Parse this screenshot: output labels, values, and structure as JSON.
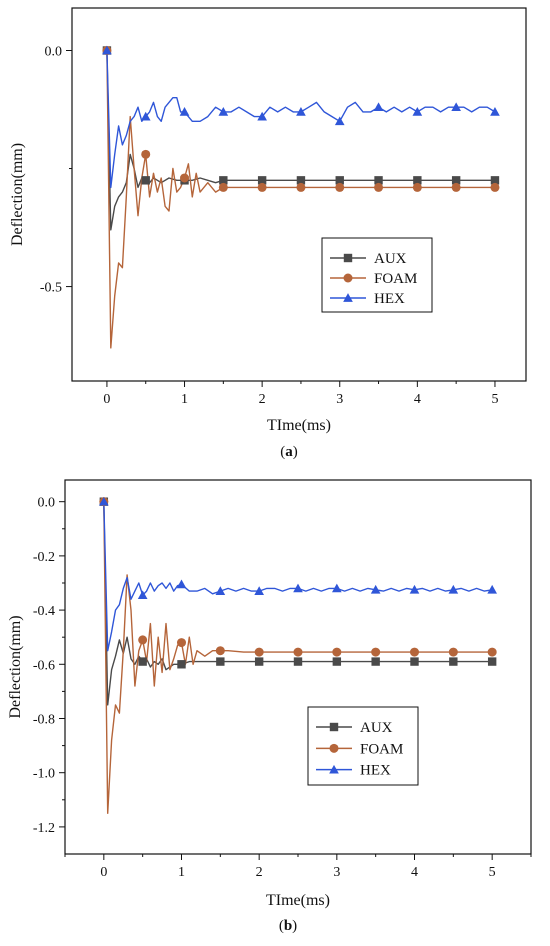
{
  "chart_data": [
    {
      "type": "line",
      "caption_letter": "a",
      "xlabel": "TIme(ms)",
      "ylabel": "Deflection(mm)",
      "xlim": [
        -0.45,
        5.4
      ],
      "ylim": [
        -0.7,
        0.09
      ],
      "xticks": [
        0,
        1,
        2,
        3,
        4,
        5
      ],
      "yticks": [
        0.0,
        -0.5
      ],
      "ytick_labels": [
        "0.0",
        "-0.5"
      ],
      "grid": false,
      "legend_position": "bottom-right",
      "series": [
        {
          "name": "AUX",
          "color": "#4a4a4a",
          "marker": "square",
          "x": [
            0,
            0.05,
            0.1,
            0.15,
            0.2,
            0.25,
            0.3,
            0.35,
            0.4,
            0.45,
            0.5,
            0.55,
            0.6,
            0.65,
            0.7,
            0.8,
            0.9,
            1.0,
            1.1,
            1.2,
            1.3,
            1.4,
            1.5,
            1.6,
            1.7,
            1.8,
            1.9,
            2.0,
            2.5,
            3.0,
            3.5,
            4.0,
            4.5,
            5.0
          ],
          "y": [
            0,
            -0.38,
            -0.33,
            -0.31,
            -0.3,
            -0.28,
            -0.22,
            -0.25,
            -0.29,
            -0.27,
            -0.275,
            -0.28,
            -0.27,
            -0.275,
            -0.28,
            -0.27,
            -0.275,
            -0.275,
            -0.275,
            -0.27,
            -0.275,
            -0.28,
            -0.275,
            -0.275,
            -0.275,
            -0.275,
            -0.275,
            -0.275,
            -0.275,
            -0.275,
            -0.275,
            -0.275,
            -0.275,
            -0.275
          ],
          "marker_x": [
            0,
            0.5,
            1.0,
            1.5,
            2.0,
            2.5,
            3.0,
            3.5,
            4.0,
            4.5,
            5.0
          ]
        },
        {
          "name": "FOAM",
          "color": "#b5653a",
          "marker": "circle",
          "x": [
            0,
            0.05,
            0.1,
            0.15,
            0.2,
            0.25,
            0.3,
            0.35,
            0.4,
            0.45,
            0.5,
            0.55,
            0.6,
            0.65,
            0.7,
            0.75,
            0.8,
            0.85,
            0.9,
            0.95,
            1.0,
            1.05,
            1.1,
            1.15,
            1.2,
            1.3,
            1.4,
            1.5,
            1.6,
            1.8,
            2.0,
            2.2,
            2.5,
            3.0,
            3.5,
            4.0,
            4.5,
            5.0
          ],
          "y": [
            0,
            -0.63,
            -0.52,
            -0.45,
            -0.46,
            -0.31,
            -0.14,
            -0.25,
            -0.35,
            -0.27,
            -0.22,
            -0.31,
            -0.26,
            -0.3,
            -0.27,
            -0.33,
            -0.34,
            -0.25,
            -0.3,
            -0.29,
            -0.27,
            -0.24,
            -0.31,
            -0.26,
            -0.3,
            -0.28,
            -0.3,
            -0.29,
            -0.29,
            -0.29,
            -0.29,
            -0.29,
            -0.29,
            -0.29,
            -0.29,
            -0.29,
            -0.29,
            -0.29
          ],
          "marker_x": [
            0,
            0.5,
            1.0,
            1.5,
            2.0,
            2.5,
            3.0,
            3.5,
            4.0,
            4.5,
            5.0
          ]
        },
        {
          "name": "HEX",
          "color": "#2f56d8",
          "marker": "triangle",
          "x": [
            0,
            0.05,
            0.1,
            0.15,
            0.2,
            0.25,
            0.3,
            0.35,
            0.4,
            0.45,
            0.5,
            0.55,
            0.6,
            0.65,
            0.7,
            0.75,
            0.8,
            0.85,
            0.9,
            0.95,
            1.0,
            1.1,
            1.2,
            1.3,
            1.4,
            1.5,
            1.6,
            1.7,
            1.8,
            1.9,
            2.0,
            2.1,
            2.2,
            2.3,
            2.4,
            2.5,
            2.6,
            2.7,
            2.8,
            2.9,
            3.0,
            3.1,
            3.2,
            3.3,
            3.4,
            3.5,
            3.6,
            3.7,
            3.8,
            3.9,
            4.0,
            4.1,
            4.2,
            4.3,
            4.4,
            4.5,
            4.6,
            4.7,
            4.8,
            4.9,
            5.0
          ],
          "y": [
            0,
            -0.29,
            -0.22,
            -0.16,
            -0.2,
            -0.18,
            -0.15,
            -0.14,
            -0.12,
            -0.15,
            -0.14,
            -0.13,
            -0.11,
            -0.14,
            -0.15,
            -0.12,
            -0.11,
            -0.1,
            -0.1,
            -0.13,
            -0.13,
            -0.15,
            -0.15,
            -0.14,
            -0.12,
            -0.13,
            -0.13,
            -0.12,
            -0.13,
            -0.14,
            -0.14,
            -0.12,
            -0.13,
            -0.12,
            -0.13,
            -0.13,
            -0.12,
            -0.11,
            -0.13,
            -0.14,
            -0.15,
            -0.12,
            -0.11,
            -0.13,
            -0.13,
            -0.12,
            -0.13,
            -0.12,
            -0.13,
            -0.12,
            -0.13,
            -0.12,
            -0.12,
            -0.13,
            -0.12,
            -0.12,
            -0.12,
            -0.13,
            -0.12,
            -0.12,
            -0.13
          ],
          "marker_x": [
            0,
            0.5,
            1.0,
            1.5,
            2.0,
            2.5,
            3.0,
            3.5,
            4.0,
            4.5,
            5.0
          ]
        }
      ]
    },
    {
      "type": "line",
      "caption_letter": "b",
      "xlabel": "TIme(ms)",
      "ylabel": "Deflection(mm)",
      "xlim": [
        -0.5,
        5.5
      ],
      "ylim": [
        -1.3,
        0.08
      ],
      "xticks": [
        0,
        1,
        2,
        3,
        4,
        5
      ],
      "yticks": [
        0.0,
        -0.2,
        -0.4,
        -0.6,
        -0.8,
        -1.0,
        -1.2
      ],
      "ytick_labels": [
        "0.0",
        "-0.2",
        "-0.4",
        "-0.6",
        "-0.8",
        "-1.0",
        "-1.2"
      ],
      "grid": false,
      "legend_position": "bottom-right",
      "series": [
        {
          "name": "AUX",
          "color": "#4a4a4a",
          "marker": "square",
          "x": [
            0,
            0.05,
            0.1,
            0.15,
            0.2,
            0.25,
            0.3,
            0.35,
            0.4,
            0.45,
            0.5,
            0.55,
            0.6,
            0.65,
            0.7,
            0.75,
            0.8,
            0.9,
            1.0,
            1.1,
            1.2,
            1.3,
            1.5,
            2.0,
            2.5,
            3.0,
            3.5,
            4.0,
            4.5,
            5.0
          ],
          "y": [
            0,
            -0.75,
            -0.62,
            -0.57,
            -0.51,
            -0.56,
            -0.5,
            -0.58,
            -0.6,
            -0.57,
            -0.59,
            -0.58,
            -0.61,
            -0.59,
            -0.6,
            -0.58,
            -0.62,
            -0.6,
            -0.6,
            -0.59,
            -0.59,
            -0.59,
            -0.59,
            -0.59,
            -0.59,
            -0.59,
            -0.59,
            -0.59,
            -0.59,
            -0.59
          ],
          "marker_x": [
            0,
            0.5,
            1.0,
            1.5,
            2.0,
            2.5,
            3.0,
            3.5,
            4.0,
            4.5,
            5.0
          ]
        },
        {
          "name": "FOAM",
          "color": "#b5653a",
          "marker": "circle",
          "x": [
            0,
            0.05,
            0.1,
            0.15,
            0.2,
            0.25,
            0.3,
            0.35,
            0.4,
            0.45,
            0.5,
            0.55,
            0.6,
            0.65,
            0.7,
            0.75,
            0.8,
            0.85,
            0.9,
            0.95,
            1.0,
            1.05,
            1.1,
            1.15,
            1.2,
            1.3,
            1.4,
            1.5,
            1.6,
            1.8,
            2.0,
            2.5,
            3.0,
            3.5,
            4.0,
            4.5,
            5.0
          ],
          "y": [
            0,
            -1.15,
            -0.88,
            -0.75,
            -0.78,
            -0.55,
            -0.27,
            -0.4,
            -0.68,
            -0.55,
            -0.51,
            -0.59,
            -0.45,
            -0.68,
            -0.5,
            -0.63,
            -0.45,
            -0.62,
            -0.58,
            -0.53,
            -0.52,
            -0.6,
            -0.5,
            -0.6,
            -0.55,
            -0.57,
            -0.55,
            -0.55,
            -0.55,
            -0.555,
            -0.555,
            -0.555,
            -0.555,
            -0.555,
            -0.555,
            -0.555,
            -0.555
          ],
          "marker_x": [
            0,
            0.5,
            1.0,
            1.5,
            2.0,
            2.5,
            3.0,
            3.5,
            4.0,
            4.5,
            5.0
          ]
        },
        {
          "name": "HEX",
          "color": "#2f56d8",
          "marker": "triangle",
          "x": [
            0,
            0.05,
            0.1,
            0.15,
            0.2,
            0.25,
            0.3,
            0.35,
            0.4,
            0.45,
            0.5,
            0.55,
            0.6,
            0.65,
            0.7,
            0.75,
            0.8,
            0.85,
            0.9,
            0.95,
            1.0,
            1.1,
            1.2,
            1.3,
            1.4,
            1.5,
            1.6,
            1.7,
            1.8,
            1.9,
            2.0,
            2.1,
            2.2,
            2.3,
            2.4,
            2.5,
            2.6,
            2.7,
            2.8,
            2.9,
            3.0,
            3.1,
            3.2,
            3.3,
            3.4,
            3.5,
            3.6,
            3.7,
            3.8,
            3.9,
            4.0,
            4.1,
            4.2,
            4.3,
            4.4,
            4.5,
            4.6,
            4.7,
            4.8,
            4.9,
            5.0
          ],
          "y": [
            0,
            -0.55,
            -0.48,
            -0.4,
            -0.38,
            -0.32,
            -0.28,
            -0.36,
            -0.33,
            -0.3,
            -0.345,
            -0.33,
            -0.3,
            -0.33,
            -0.31,
            -0.3,
            -0.32,
            -0.3,
            -0.33,
            -0.31,
            -0.305,
            -0.33,
            -0.33,
            -0.32,
            -0.34,
            -0.33,
            -0.32,
            -0.33,
            -0.32,
            -0.33,
            -0.33,
            -0.32,
            -0.32,
            -0.33,
            -0.32,
            -0.32,
            -0.33,
            -0.32,
            -0.33,
            -0.32,
            -0.32,
            -0.33,
            -0.32,
            -0.33,
            -0.32,
            -0.325,
            -0.33,
            -0.32,
            -0.33,
            -0.32,
            -0.325,
            -0.32,
            -0.33,
            -0.32,
            -0.33,
            -0.325,
            -0.32,
            -0.33,
            -0.32,
            -0.33,
            -0.325
          ],
          "marker_x": [
            0,
            0.5,
            1.0,
            1.5,
            2.0,
            2.5,
            3.0,
            3.5,
            4.0,
            4.5,
            5.0
          ]
        }
      ]
    }
  ]
}
